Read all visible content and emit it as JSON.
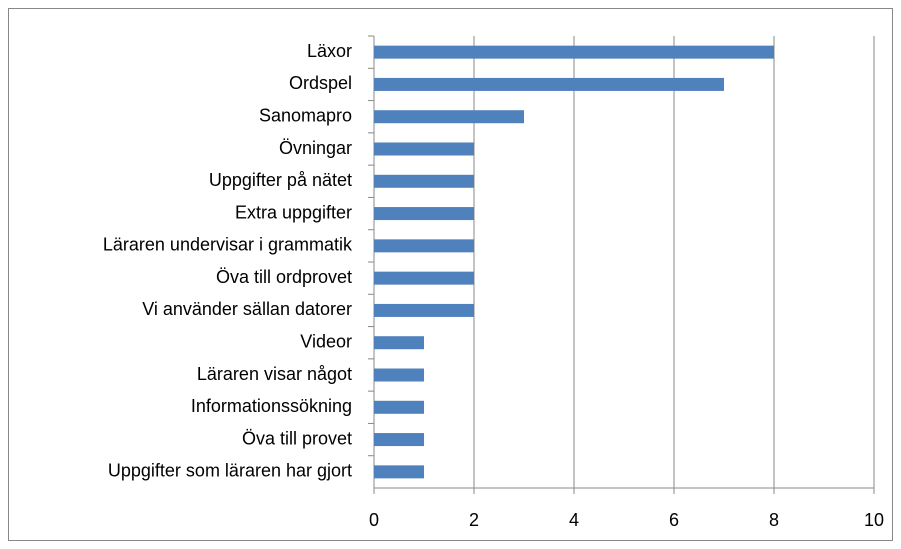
{
  "chart_data": {
    "type": "bar",
    "orientation": "horizontal",
    "categories": [
      "Läxor",
      "Ordspel",
      "Sanomapro",
      "Övningar",
      "Uppgifter på nätet",
      "Extra uppgifter",
      "Läraren undervisar i grammatik",
      "Öva till ordprovet",
      "Vi använder sällan datorer",
      "Videor",
      "Läraren visar något",
      "Informationssökning",
      "Öva till provet",
      "Uppgifter som läraren har gjort"
    ],
    "values": [
      8,
      7,
      3,
      2,
      2,
      2,
      2,
      2,
      2,
      1,
      1,
      1,
      1,
      1
    ],
    "color": "#4f81bd",
    "xlim": [
      0,
      10
    ],
    "xticks": [
      0,
      2,
      4,
      6,
      8,
      10
    ],
    "grid": true
  }
}
